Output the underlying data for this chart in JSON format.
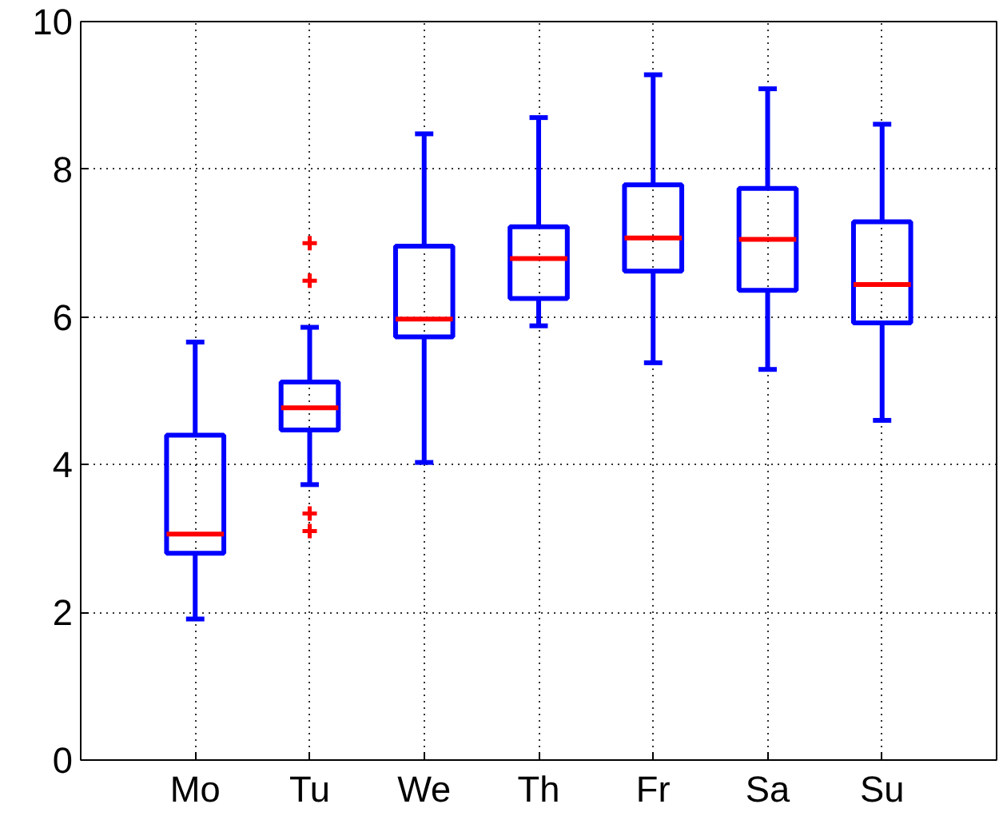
{
  "chart_data": {
    "type": "box",
    "categories": [
      "Mo",
      "Tu",
      "We",
      "Th",
      "Fr",
      "Sa",
      "Su"
    ],
    "boxes": [
      {
        "low": 1.91,
        "q1": 2.8,
        "median": 3.06,
        "q3": 4.4,
        "high": 5.66
      },
      {
        "low": 3.73,
        "q1": 4.47,
        "median": 4.77,
        "q3": 5.12,
        "high": 5.86,
        "outliers": [
          7.0,
          6.49,
          3.34,
          3.1
        ]
      },
      {
        "low": 4.03,
        "q1": 5.73,
        "median": 5.97,
        "q3": 6.96,
        "high": 8.48
      },
      {
        "low": 5.88,
        "q1": 6.25,
        "median": 6.79,
        "q3": 7.22,
        "high": 8.7
      },
      {
        "low": 5.38,
        "q1": 6.62,
        "median": 7.07,
        "q3": 7.79,
        "high": 9.28
      },
      {
        "low": 5.29,
        "q1": 6.36,
        "median": 7.05,
        "q3": 7.74,
        "high": 9.09
      },
      {
        "low": 4.6,
        "q1": 5.92,
        "median": 6.44,
        "q3": 7.29,
        "high": 8.61
      }
    ],
    "color": "#0000ff",
    "marker": "cross",
    "ylim": [
      0,
      10
    ],
    "yticks": [
      0,
      2,
      4,
      6,
      8,
      10
    ],
    "grid": true
  }
}
